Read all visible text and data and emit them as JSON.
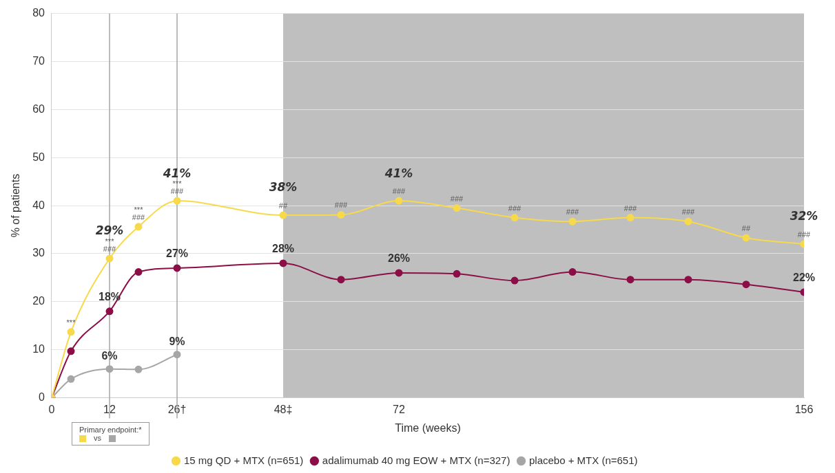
{
  "chart_data": {
    "type": "line",
    "xlabel": "Time (weeks)",
    "ylabel": "% of patients",
    "x": [
      0,
      4,
      12,
      18,
      26,
      48,
      60,
      72,
      84,
      96,
      108,
      120,
      132,
      144,
      156
    ],
    "xlim": [
      0,
      156
    ],
    "xticks": [
      0,
      12,
      {
        "value": 26,
        "label": "26†"
      },
      {
        "value": 48,
        "label": "48‡"
      },
      72,
      156
    ],
    "ylim": [
      0,
      80
    ],
    "yticks": [
      0,
      10,
      20,
      30,
      40,
      50,
      60,
      70,
      80
    ],
    "grid": "y",
    "legend": "bottom",
    "marker": "circle",
    "line_style": "solid",
    "series": [
      {
        "name": "15 mg QD + MTX (n=651)",
        "color": "#f7d94c",
        "values": [
          0,
          13.7,
          29,
          35.6,
          41,
          38,
          38.1,
          41,
          39.5,
          37.5,
          36.7,
          37.5,
          36.7,
          33.3,
          32
        ],
        "value_labels": [
          null,
          null,
          "29%",
          null,
          "41%",
          "38%",
          null,
          "41%",
          null,
          null,
          null,
          null,
          null,
          null,
          "32%"
        ]
      },
      {
        "name": "adalimumab 40 mg EOW + MTX (n=327)",
        "color": "#8c0e47",
        "values": [
          0,
          9.7,
          18,
          26.2,
          27,
          28,
          24.6,
          26,
          25.8,
          24.4,
          26.2,
          24.6,
          24.6,
          23.6,
          22
        ],
        "value_labels": [
          null,
          null,
          "18%",
          null,
          "27%",
          "28%",
          null,
          "26%",
          null,
          null,
          null,
          null,
          null,
          null,
          "22%"
        ]
      },
      {
        "name": "placebo + MTX (n=651)",
        "color": "#a6a6a6",
        "x": [
          0,
          4,
          12,
          18,
          26
        ],
        "values": [
          0,
          3.9,
          6,
          5.9,
          9
        ],
        "value_labels": [
          null,
          null,
          "6%",
          null,
          "9%"
        ]
      }
    ],
    "ref_lines": [
      {
        "axis": "x",
        "value": 12,
        "color": "#a6a6a6"
      },
      {
        "axis": "x",
        "value": 26,
        "color": "#a6a6a6"
      }
    ],
    "bands": [
      {
        "axis": "x",
        "from": 48,
        "to": 156,
        "color": "#bfbfbf"
      }
    ],
    "annotations": [
      "Primary endpoint:*",
      "vs",
      {
        "text": "***",
        "x": 4,
        "y": 13.7
      },
      {
        "text": "***",
        "x": 12,
        "y": 29
      },
      {
        "text": "###",
        "x": 12,
        "y": 29
      },
      {
        "text": "***",
        "x": 18,
        "y": 35.6
      },
      {
        "text": "###",
        "x": 18,
        "y": 35.6
      },
      {
        "text": "***",
        "x": 26,
        "y": 41
      },
      {
        "text": "###",
        "x": 26,
        "y": 41
      },
      {
        "text": "##",
        "x": 48,
        "y": 38
      },
      {
        "text": "###",
        "x": 60,
        "y": 38.1
      },
      {
        "text": "###",
        "x": 72,
        "y": 41
      },
      {
        "text": "###",
        "x": 84,
        "y": 39.5
      },
      {
        "text": "###",
        "x": 96,
        "y": 37.5
      },
      {
        "text": "###",
        "x": 108,
        "y": 36.7
      },
      {
        "text": "###",
        "x": 120,
        "y": 37.5
      },
      {
        "text": "###",
        "x": 132,
        "y": 36.7
      },
      {
        "text": "##",
        "x": 144,
        "y": 33.3
      },
      {
        "text": "###",
        "x": 156,
        "y": 32
      }
    ]
  }
}
